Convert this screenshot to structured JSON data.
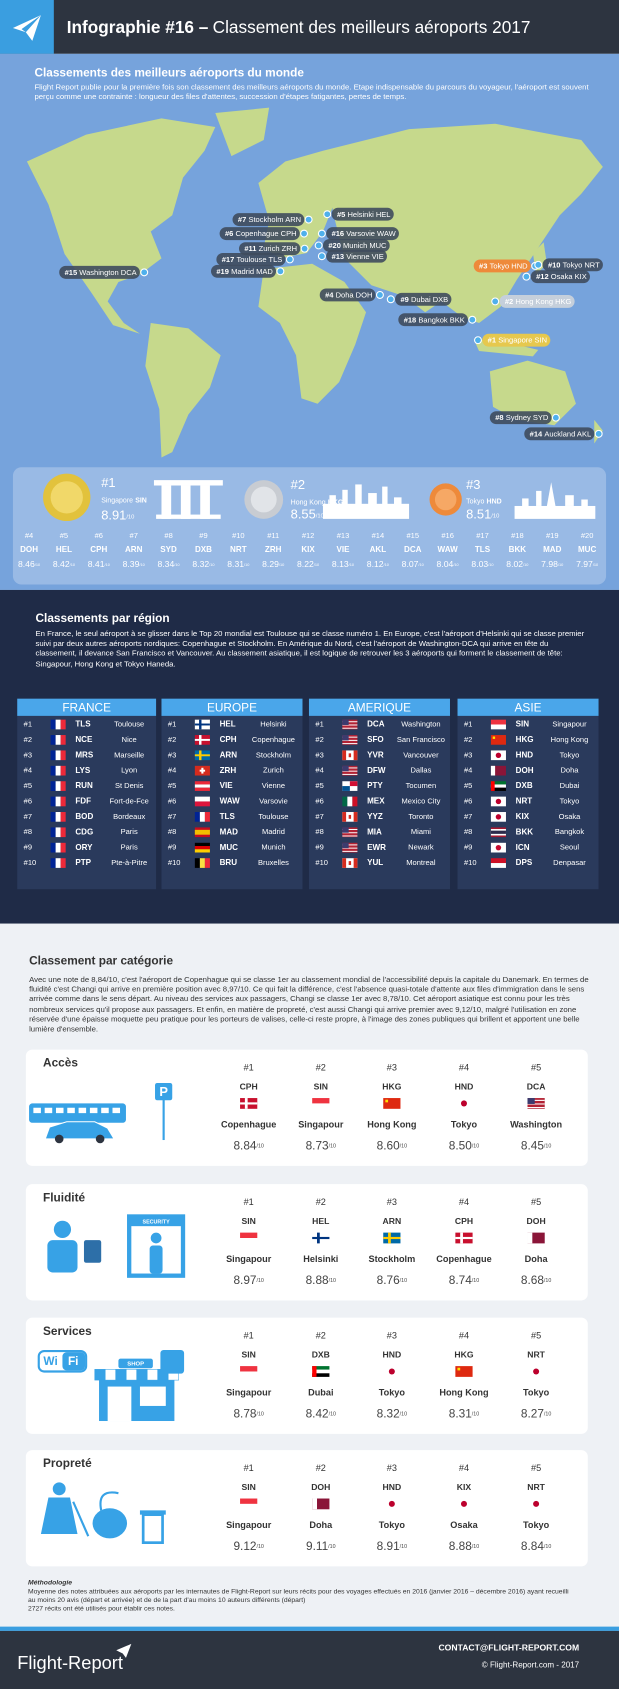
{
  "header": {
    "title_bold": "Infographie #16 –",
    "title": "Classement des meilleurs aéroports 2017"
  },
  "world": {
    "title": "Classements des meilleurs aéroports du monde",
    "intro": "Flight Report publie pour la première fois son classement des meilleurs aéroports du monde. Etape indispensable du parcours du voyageur, l'aéroport est souvent perçu comme une contrainte : longueur des files d'attentes, succession d'étapes fatigantes, pertes de temps.",
    "map_labels": [
      {
        "rank": "#7",
        "name": "Stockholm ARN"
      },
      {
        "rank": "#5",
        "name": "Helsinki HEL"
      },
      {
        "rank": "#6",
        "name": "Copenhague CPH"
      },
      {
        "rank": "#16",
        "name": "Varsovie WAW"
      },
      {
        "rank": "#11",
        "name": "Zurich ZRH"
      },
      {
        "rank": "#20",
        "name": "Munich MUC"
      },
      {
        "rank": "#13",
        "name": "Vienne VIE"
      },
      {
        "rank": "#17",
        "name": "Toulouse TLS"
      },
      {
        "rank": "#19",
        "name": "Madrid MAD"
      },
      {
        "rank": "#15",
        "name": "Washington DCA"
      },
      {
        "rank": "#3",
        "name": "Tokyo HND"
      },
      {
        "rank": "#10",
        "name": "Tokyo NRT"
      },
      {
        "rank": "#12",
        "name": "Osaka KIX"
      },
      {
        "rank": "#4",
        "name": "Doha DOH"
      },
      {
        "rank": "#9",
        "name": "Dubai DXB"
      },
      {
        "rank": "#2",
        "name": "Hong Kong HKG"
      },
      {
        "rank": "#18",
        "name": "Bangkok BKK"
      },
      {
        "rank": "#1",
        "name": "Singapore SIN"
      },
      {
        "rank": "#8",
        "name": "Sydney SYD"
      },
      {
        "rank": "#14",
        "name": "Auckland AKL"
      }
    ],
    "podium": [
      {
        "rank": "#1",
        "city": "Singapore",
        "code": "SIN",
        "score": "8.91"
      },
      {
        "rank": "#2",
        "city": "Hong Kong",
        "code": "HKG",
        "score": "8.55"
      },
      {
        "rank": "#3",
        "city": "Tokyo",
        "code": "HND",
        "score": "8.51"
      }
    ],
    "ranking": [
      {
        "rank": "#4",
        "code": "DOH",
        "score": "8.46"
      },
      {
        "rank": "#5",
        "code": "HEL",
        "score": "8.42"
      },
      {
        "rank": "#6",
        "code": "CPH",
        "score": "8.41"
      },
      {
        "rank": "#7",
        "code": "ARN",
        "score": "8.39"
      },
      {
        "rank": "#8",
        "code": "SYD",
        "score": "8.34"
      },
      {
        "rank": "#9",
        "code": "DXB",
        "score": "8.32"
      },
      {
        "rank": "#10",
        "code": "NRT",
        "score": "8.31"
      },
      {
        "rank": "#11",
        "code": "ZRH",
        "score": "8.29"
      },
      {
        "rank": "#12",
        "code": "KIX",
        "score": "8.22"
      },
      {
        "rank": "#13",
        "code": "VIE",
        "score": "8.13"
      },
      {
        "rank": "#14",
        "code": "AKL",
        "score": "8.12"
      },
      {
        "rank": "#15",
        "code": "DCA",
        "score": "8.07"
      },
      {
        "rank": "#16",
        "code": "WAW",
        "score": "8.04"
      },
      {
        "rank": "#17",
        "code": "TLS",
        "score": "8.03"
      },
      {
        "rank": "#18",
        "code": "BKK",
        "score": "8.02"
      },
      {
        "rank": "#19",
        "code": "MAD",
        "score": "7.98"
      },
      {
        "rank": "#20",
        "code": "MUC",
        "score": "7.97"
      }
    ]
  },
  "score_suffix": "/10",
  "regions": {
    "title": "Classements par région",
    "text": "En France, le seul aéroport à se glisser dans le Top 20 mondial est Toulouse qui se classe numéro 1. En Europe, c'est l'aéroport d'Helsinki qui se classe premier suivi par deux autres aéroports nordiques: Copenhague et Stockholm. En Amérique du Nord, c'est l'aéroport de Washington-DCA qui arrive en tête du classement, il devance San Francisco et Vancouver. Au classement asiatique, il est logique de retrouver les 3 aéroports qui forment le classement de tête: Singapour, Hong Kong et Tokyo Haneda.",
    "tables": [
      {
        "name": "FRANCE",
        "rows": [
          [
            "#1",
            "TLS",
            "Toulouse"
          ],
          [
            "#2",
            "NCE",
            "Nice"
          ],
          [
            "#3",
            "MRS",
            "Marseille"
          ],
          [
            "#4",
            "LYS",
            "Lyon"
          ],
          [
            "#5",
            "RUN",
            "St Denis"
          ],
          [
            "#6",
            "FDF",
            "Fort-de-Fce"
          ],
          [
            "#7",
            "BOD",
            "Bordeaux"
          ],
          [
            "#8",
            "CDG",
            "Paris"
          ],
          [
            "#9",
            "ORY",
            "Paris"
          ],
          [
            "#10",
            "PTP",
            "Pte-à-Pitre"
          ]
        ]
      },
      {
        "name": "EUROPE",
        "rows": [
          [
            "#1",
            "HEL",
            "Helsinki"
          ],
          [
            "#2",
            "CPH",
            "Copenhague"
          ],
          [
            "#3",
            "ARN",
            "Stockholm"
          ],
          [
            "#4",
            "ZRH",
            "Zurich"
          ],
          [
            "#5",
            "VIE",
            "Vienne"
          ],
          [
            "#6",
            "WAW",
            "Varsovie"
          ],
          [
            "#7",
            "TLS",
            "Toulouse"
          ],
          [
            "#8",
            "MAD",
            "Madrid"
          ],
          [
            "#9",
            "MUC",
            "Munich"
          ],
          [
            "#10",
            "BRU",
            "Bruxelles"
          ]
        ]
      },
      {
        "name": "AMERIQUE",
        "rows": [
          [
            "#1",
            "DCA",
            "Washington"
          ],
          [
            "#2",
            "SFO",
            "San Francisco"
          ],
          [
            "#3",
            "YVR",
            "Vancouver"
          ],
          [
            "#4",
            "DFW",
            "Dallas"
          ],
          [
            "#5",
            "PTY",
            "Tocumen"
          ],
          [
            "#6",
            "MEX",
            "Mexico City"
          ],
          [
            "#7",
            "YYZ",
            "Toronto"
          ],
          [
            "#8",
            "MIA",
            "Miami"
          ],
          [
            "#9",
            "EWR",
            "Newark"
          ],
          [
            "#10",
            "YUL",
            "Montreal"
          ]
        ]
      },
      {
        "name": "ASIE",
        "rows": [
          [
            "#1",
            "SIN",
            "Singapour"
          ],
          [
            "#2",
            "HKG",
            "Hong Kong"
          ],
          [
            "#3",
            "HND",
            "Tokyo"
          ],
          [
            "#4",
            "DOH",
            "Doha"
          ],
          [
            "#5",
            "DXB",
            "Dubai"
          ],
          [
            "#6",
            "NRT",
            "Tokyo"
          ],
          [
            "#7",
            "KIX",
            "Osaka"
          ],
          [
            "#8",
            "BKK",
            "Bangkok"
          ],
          [
            "#9",
            "ICN",
            "Seoul"
          ],
          [
            "#10",
            "DPS",
            "Denpasar"
          ]
        ]
      }
    ]
  },
  "categories": {
    "title": "Classement par catégorie",
    "text": "Avec une note de 8,84/10, c'est l'aéroport de Copenhague qui se classe 1er au classement mondial de l'accessibilité depuis la capitale du Danemark. En termes de fluidité c'est Changi qui arrive en première position avec 8,97/10. Ce qui fait la différence, c'est l'absence quasi-totale d'attente aux files d'immigration dans le sens arrivée comme dans le sens départ. Au niveau des services aux passagers, Changi se classe 1er avec 8,78/10. Cet aéroport asiatique est connu pour les très nombreux services qu'il propose aux passagers. Et enfin, en matière de propreté, c'est aussi Changi qui arrive premier avec 9,12/10, malgré l'utilisation en zone réservée d'une épaisse moquette peu pratique pour les porteurs de valises, celle-ci reste propre, à l'image des zones publiques qui brillent et apportent une belle lumière d'ensemble.",
    "groups": [
      {
        "name": "Accès",
        "illustration_labels": [
          "P"
        ],
        "items": [
          {
            "rank": "#1",
            "code": "CPH",
            "city": "Copenhague",
            "score": "8.84"
          },
          {
            "rank": "#2",
            "code": "SIN",
            "city": "Singapour",
            "score": "8.73"
          },
          {
            "rank": "#3",
            "code": "HKG",
            "city": "Hong Kong",
            "score": "8.60"
          },
          {
            "rank": "#4",
            "code": "HND",
            "city": "Tokyo",
            "score": "8.50"
          },
          {
            "rank": "#5",
            "code": "DCA",
            "city": "Washington",
            "score": "8.45"
          }
        ]
      },
      {
        "name": "Fluidité",
        "illustration_labels": [
          "SECURITY"
        ],
        "items": [
          {
            "rank": "#1",
            "code": "SIN",
            "city": "Singapour",
            "score": "8.97"
          },
          {
            "rank": "#2",
            "code": "HEL",
            "city": "Helsinki",
            "score": "8.88"
          },
          {
            "rank": "#3",
            "code": "ARN",
            "city": "Stockholm",
            "score": "8.76"
          },
          {
            "rank": "#4",
            "code": "CPH",
            "city": "Copenhague",
            "score": "8.74"
          },
          {
            "rank": "#5",
            "code": "DOH",
            "city": "Doha",
            "score": "8.68"
          }
        ]
      },
      {
        "name": "Services",
        "illustration_labels": [
          "Wi",
          "Fi",
          "SHOP"
        ],
        "items": [
          {
            "rank": "#1",
            "code": "SIN",
            "city": "Singapour",
            "score": "8.78"
          },
          {
            "rank": "#2",
            "code": "DXB",
            "city": "Dubai",
            "score": "8.42"
          },
          {
            "rank": "#3",
            "code": "HND",
            "city": "Tokyo",
            "score": "8.32"
          },
          {
            "rank": "#4",
            "code": "HKG",
            "city": "Hong Kong",
            "score": "8.31"
          },
          {
            "rank": "#5",
            "code": "NRT",
            "city": "Tokyo",
            "score": "8.27"
          }
        ]
      },
      {
        "name": "Propreté",
        "items": [
          {
            "rank": "#1",
            "code": "SIN",
            "city": "Singapour",
            "score": "9.12"
          },
          {
            "rank": "#2",
            "code": "DOH",
            "city": "Doha",
            "score": "9.11"
          },
          {
            "rank": "#3",
            "code": "HND",
            "city": "Tokyo",
            "score": "8.91"
          },
          {
            "rank": "#4",
            "code": "KIX",
            "city": "Osaka",
            "score": "8.88"
          },
          {
            "rank": "#5",
            "code": "NRT",
            "city": "Tokyo",
            "score": "8.84"
          }
        ]
      }
    ]
  },
  "methodology": {
    "title": "Méthodologie",
    "text": [
      "Moyenne des notes attribuées aux aéroports par les internautes de Flight-Report sur leurs récits pour des voyages effectués en 2016 (janvier 2016 – décembre 2016) ayant recueilli au moins 20 avis (départ et arrivée) et de de la part d'au moins 10 auteurs différents (départ)",
      "2727 récits ont été utilisés pour établir ces notes."
    ]
  },
  "footer": {
    "brand": "Flight-Report",
    "contact": "CONTACT@FLIGHT-REPORT.COM",
    "copyright": "© Flight-Report.com - 2017"
  }
}
